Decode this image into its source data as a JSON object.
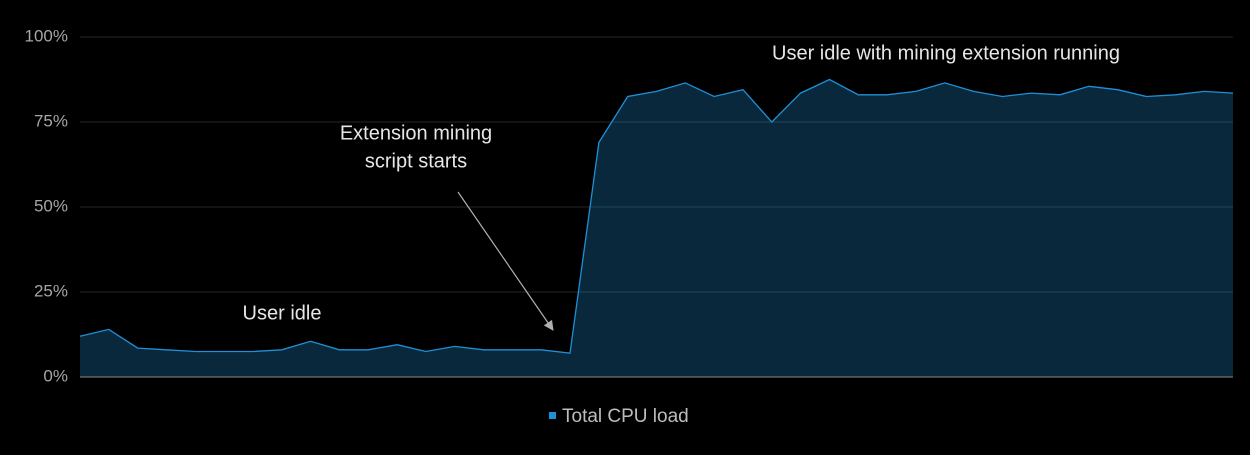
{
  "chart_data": {
    "type": "area",
    "categories": [
      null,
      null,
      null,
      null,
      null,
      null,
      null,
      null,
      null,
      null,
      null,
      null,
      null,
      null,
      null,
      null,
      null,
      null,
      null,
      null,
      null,
      null,
      null,
      null,
      null,
      null,
      null,
      null,
      null,
      null,
      null,
      null,
      null,
      null,
      null,
      null,
      null,
      null,
      null,
      null,
      null
    ],
    "series": [
      {
        "name": "Total CPU load",
        "color": "#1f8fd6",
        "values": [
          12,
          14,
          8.5,
          8,
          7.5,
          7.5,
          7.5,
          8,
          10.5,
          8,
          8,
          9.5,
          7.5,
          9,
          8,
          8,
          8,
          7,
          69,
          82.5,
          84,
          86.5,
          82.5,
          84.5,
          75,
          83.5,
          87.5,
          83,
          83,
          84,
          86.5,
          84,
          82.5,
          83.5,
          83,
          85.5,
          84.5,
          82.5,
          83,
          84,
          83.5
        ]
      }
    ],
    "ylim": [
      0,
      100
    ],
    "yticks": [
      {
        "value": 0,
        "label": "0%"
      },
      {
        "value": 25,
        "label": "25%"
      },
      {
        "value": 50,
        "label": "50%"
      },
      {
        "value": 75,
        "label": "75%"
      },
      {
        "value": 100,
        "label": "100%"
      }
    ],
    "grid": true,
    "legend": "bottom",
    "annotations": [
      {
        "lines": [
          "User idle"
        ]
      },
      {
        "lines": [
          "Extension mining",
          "script starts"
        ]
      },
      {
        "lines": [
          "User idle with mining extension running"
        ]
      }
    ]
  }
}
